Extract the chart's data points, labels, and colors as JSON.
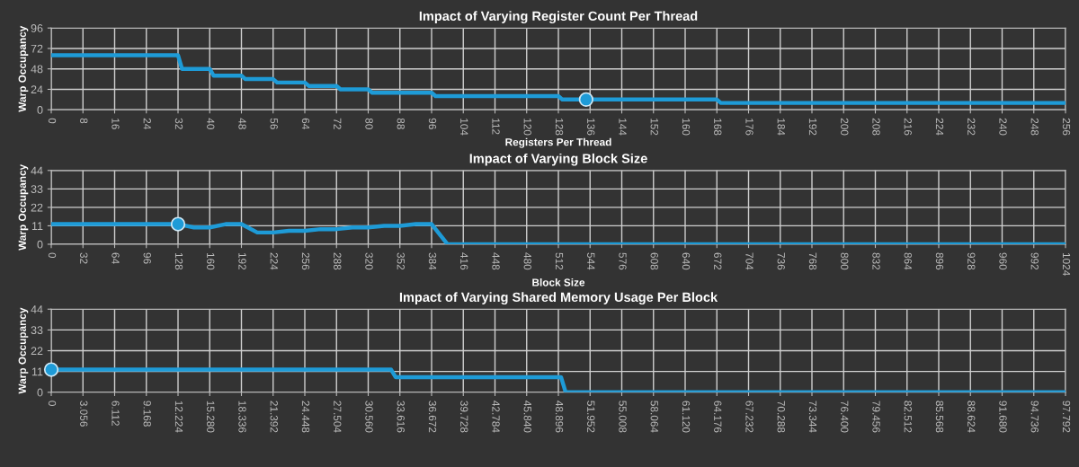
{
  "chart_data": [
    {
      "type": "line",
      "title": "Impact of Varying Register Count Per Thread",
      "xlabel": "Registers Per Thread",
      "ylabel": "Warp Occupancy",
      "grid": true,
      "xlim": [
        0,
        256
      ],
      "xticks": [
        0,
        8,
        16,
        24,
        32,
        40,
        48,
        56,
        64,
        72,
        80,
        88,
        96,
        104,
        112,
        120,
        128,
        136,
        144,
        152,
        160,
        168,
        176,
        184,
        192,
        200,
        208,
        216,
        224,
        232,
        240,
        248,
        256
      ],
      "ylim": [
        0,
        96
      ],
      "yticks": [
        0,
        24,
        48,
        72,
        96
      ],
      "series": [
        {
          "color": "#1e9bd7",
          "x": [
            0,
            32,
            33,
            40,
            41,
            48,
            49,
            56,
            57,
            64,
            65,
            72,
            73,
            80,
            81,
            96,
            97,
            128,
            129,
            168,
            169,
            256
          ],
          "values": [
            64,
            64,
            48,
            48,
            40,
            40,
            36,
            36,
            32,
            32,
            28,
            28,
            24,
            24,
            20,
            20,
            16,
            16,
            12,
            12,
            8,
            8
          ]
        },
        {
          "type": "scatter",
          "color": "#1e9bd7",
          "marker": "circle",
          "x": [
            135
          ],
          "values": [
            12
          ]
        }
      ]
    },
    {
      "type": "line",
      "title": "Impact of Varying Block Size",
      "xlabel": "Block Size",
      "ylabel": "Warp Occupancy",
      "grid": true,
      "xlim": [
        0,
        1024
      ],
      "xticks": [
        0,
        32,
        64,
        96,
        128,
        160,
        192,
        224,
        256,
        288,
        320,
        352,
        384,
        416,
        448,
        480,
        512,
        544,
        576,
        608,
        640,
        672,
        704,
        736,
        768,
        800,
        832,
        864,
        896,
        928,
        960,
        992,
        1024
      ],
      "ylim": [
        0,
        44
      ],
      "yticks": [
        0,
        11,
        22,
        33,
        44
      ],
      "series": [
        {
          "color": "#1e9bd7",
          "x": [
            0,
            128,
            144,
            160,
            176,
            192,
            208,
            224,
            240,
            256,
            272,
            288,
            304,
            320,
            336,
            352,
            368,
            384,
            400,
            1024
          ],
          "values": [
            12,
            12,
            10,
            10,
            12,
            12,
            7,
            7,
            8,
            8,
            9,
            9,
            10,
            10,
            11,
            11,
            12,
            12,
            0,
            0
          ]
        },
        {
          "type": "scatter",
          "color": "#1e9bd7",
          "marker": "circle",
          "x": [
            128
          ],
          "values": [
            12
          ]
        }
      ]
    },
    {
      "type": "line",
      "title": "Impact of Varying Shared Memory Usage Per Block",
      "ylabel": "Warp Occupancy",
      "grid": true,
      "xlim": [
        0,
        97.792
      ],
      "xticks": [
        0,
        3.056,
        6.112,
        9.168,
        12.224,
        {
          "value": 15.28,
          "label": "15.280"
        },
        18.336,
        21.392,
        24.448,
        27.504,
        {
          "value": 30.56,
          "label": "30.560"
        },
        33.616,
        36.672,
        39.728,
        42.784,
        {
          "value": 45.84,
          "label": "45.840"
        },
        48.896,
        51.952,
        55.008,
        58.064,
        {
          "value": 61.12,
          "label": "61.120"
        },
        64.176,
        67.232,
        70.288,
        73.344,
        {
          "value": 76.4,
          "label": "76.400"
        },
        79.456,
        82.512,
        85.568,
        88.624,
        {
          "value": 91.68,
          "label": "91.680"
        },
        94.736,
        97.792
      ],
      "ylim": [
        0,
        44
      ],
      "yticks": [
        0,
        11,
        22,
        33,
        44
      ],
      "series": [
        {
          "color": "#1e9bd7",
          "x": [
            0,
            32.768,
            33.2,
            49.152,
            49.6,
            97.792
          ],
          "values": [
            12,
            12,
            8,
            8,
            0,
            0
          ]
        },
        {
          "type": "scatter",
          "color": "#1e9bd7",
          "marker": "circle",
          "x": [
            0
          ],
          "values": [
            12
          ]
        }
      ]
    }
  ]
}
